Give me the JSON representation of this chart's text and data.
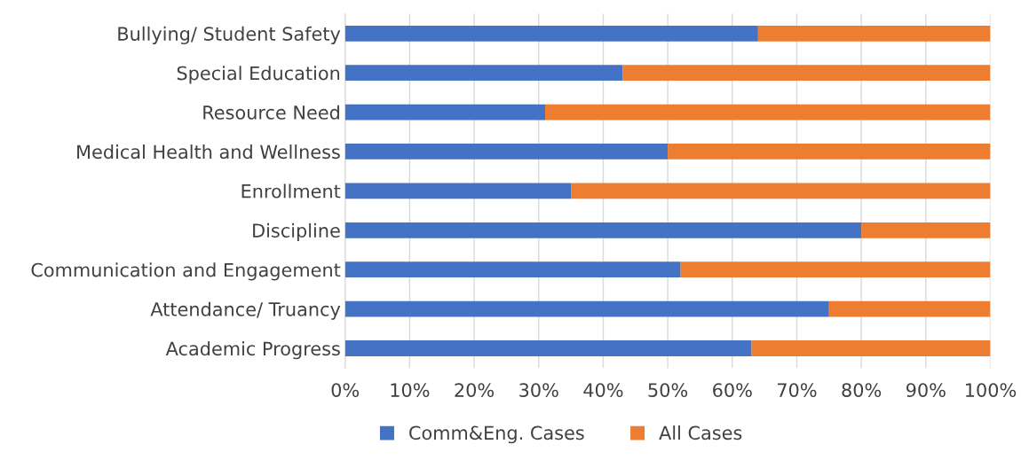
{
  "chart_data": {
    "type": "bar",
    "orientation": "horizontal",
    "stacked": true,
    "categories": [
      "Bullying/ Student Safety",
      "Special Education",
      "Resource Need",
      "Medical Health and Wellness",
      "Enrollment",
      "Discipline",
      "Communication and Engagement",
      "Attendance/ Truancy",
      "Academic Progress"
    ],
    "series": [
      {
        "name": "Comm&Eng. Cases",
        "color": "#4472c4",
        "values": [
          64,
          43,
          31,
          50,
          35,
          80,
          52,
          75,
          63
        ]
      },
      {
        "name": "All Cases",
        "color": "#ed7d31",
        "values": [
          36,
          57,
          69,
          50,
          65,
          20,
          48,
          25,
          37
        ]
      }
    ],
    "xlim": [
      0,
      100
    ],
    "xticks": [
      {
        "value": 0,
        "label": "0%"
      },
      {
        "value": 10,
        "label": "10%"
      },
      {
        "value": 20,
        "label": "20%"
      },
      {
        "value": 30,
        "label": "30%"
      },
      {
        "value": 40,
        "label": "40%"
      },
      {
        "value": 50,
        "label": "50%"
      },
      {
        "value": 60,
        "label": "60%"
      },
      {
        "value": 70,
        "label": "70%"
      },
      {
        "value": 80,
        "label": "80%"
      },
      {
        "value": 90,
        "label": "90%"
      },
      {
        "value": 100,
        "label": "100%"
      }
    ],
    "grid": "x",
    "legend": "bottom"
  }
}
